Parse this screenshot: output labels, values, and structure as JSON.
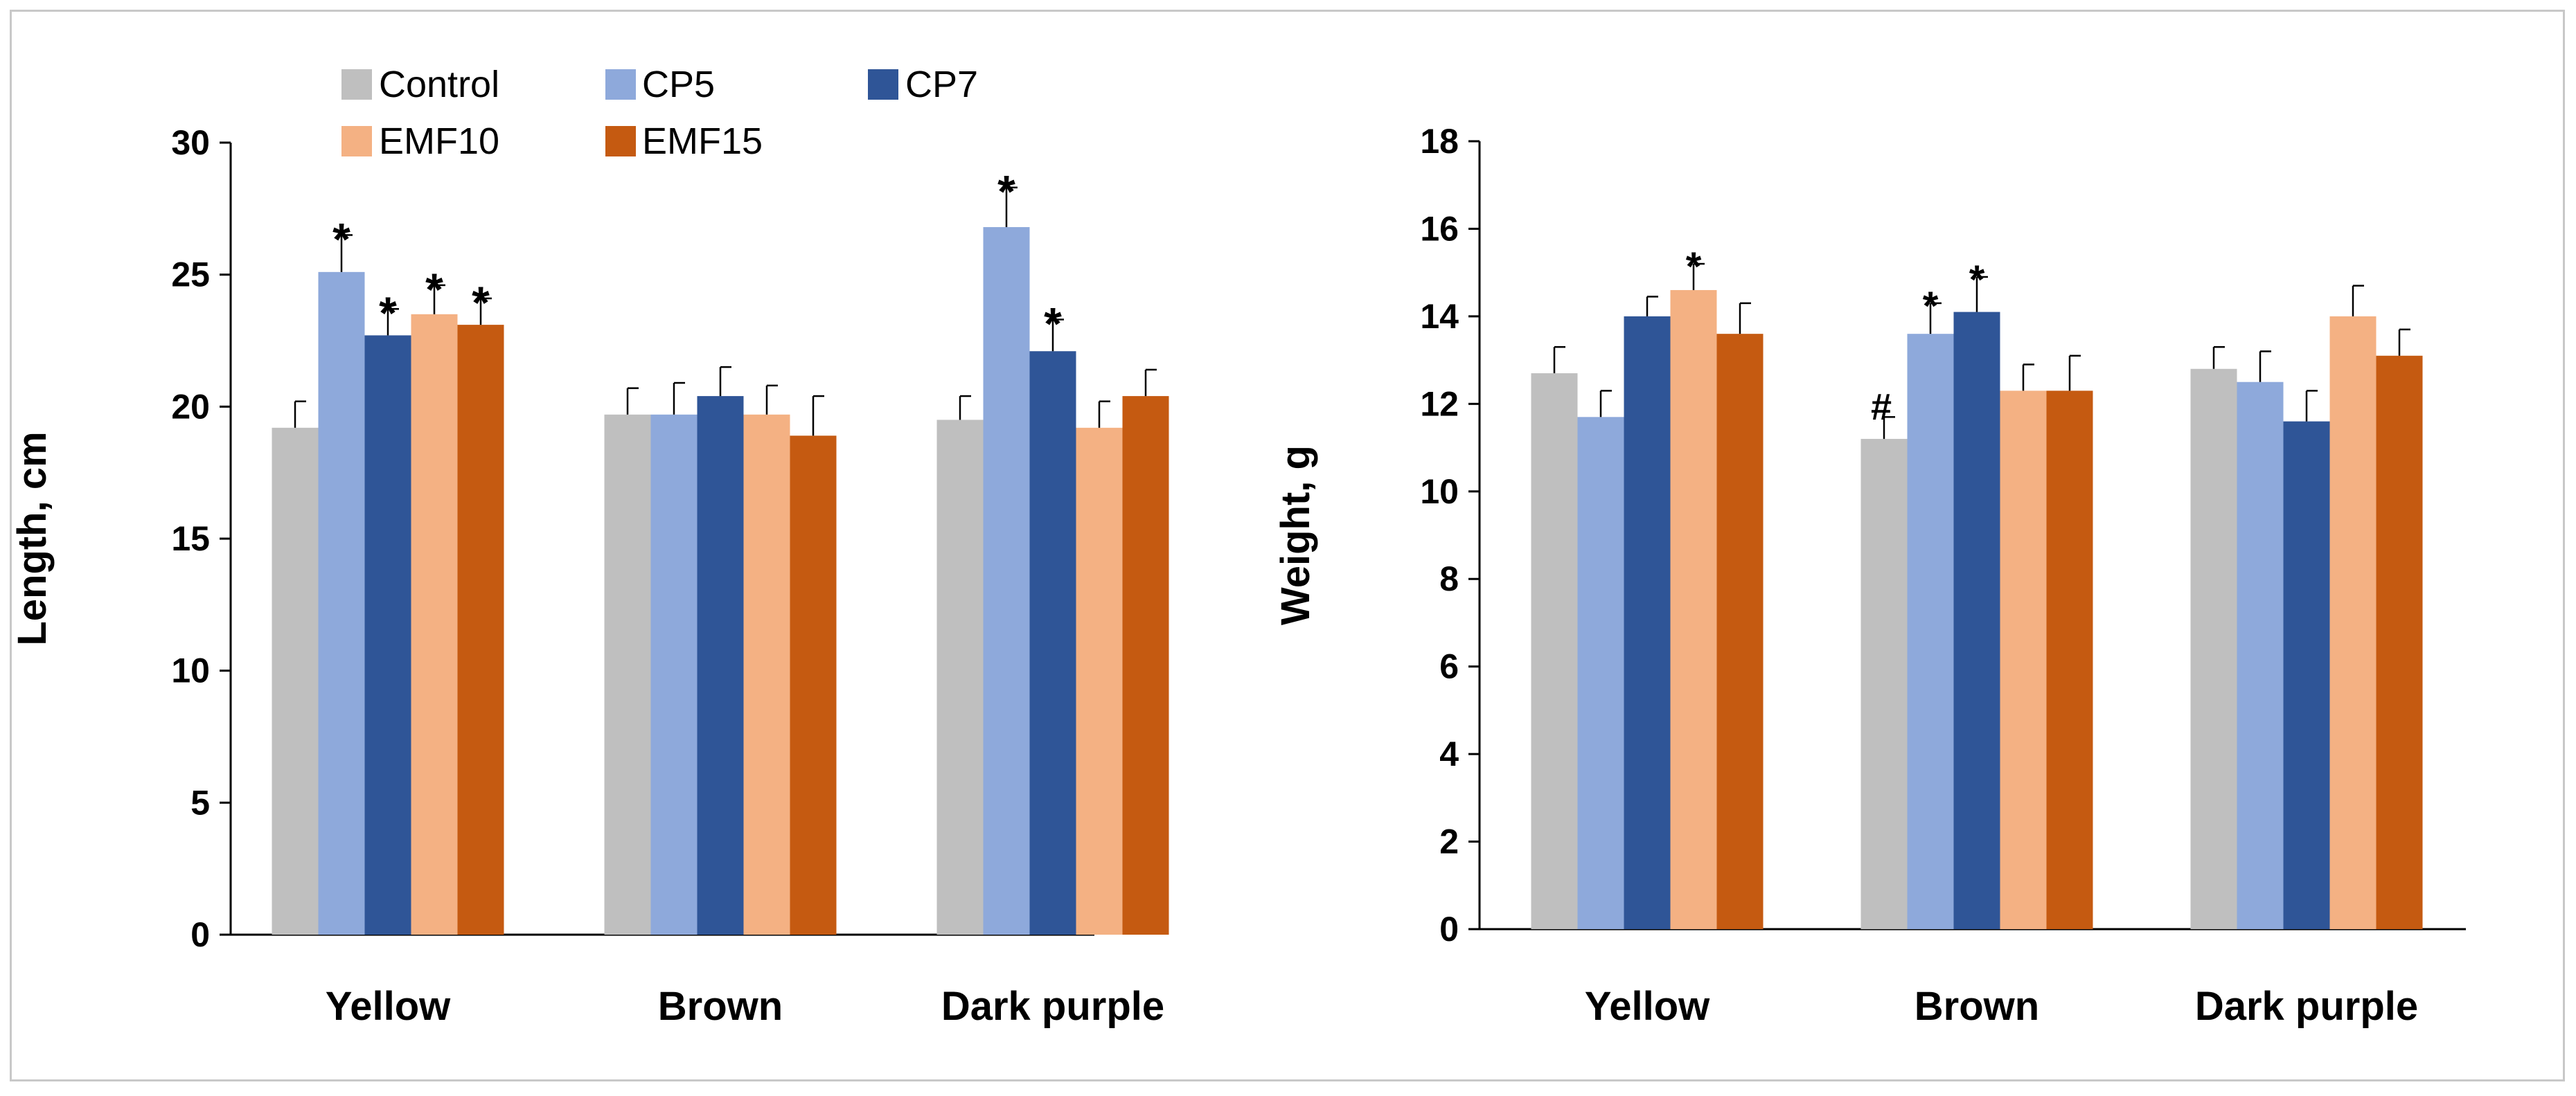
{
  "legend": {
    "entries": [
      {
        "name": "Control",
        "color": "#BFBFBF"
      },
      {
        "name": "CP5",
        "color": "#8EA9DB"
      },
      {
        "name": "CP7",
        "color": "#2F5597"
      },
      {
        "name": "EMF10",
        "color": "#F4B183"
      },
      {
        "name": "EMF15",
        "color": "#C55A11"
      }
    ]
  },
  "chart_data": [
    {
      "type": "bar",
      "title": "",
      "xlabel": "",
      "ylabel": "Length, cm",
      "ylim": [
        0,
        30
      ],
      "yticks": [
        0,
        5,
        10,
        15,
        20,
        25,
        30
      ],
      "categories": [
        "Yellow",
        "Brown",
        "Dark purple"
      ],
      "series": [
        {
          "name": "Control",
          "color": "#BFBFBF",
          "values": [
            19.2,
            19.7,
            19.5
          ],
          "errors": [
            1.0,
            1.0,
            0.9
          ],
          "marks": [
            "",
            "",
            ""
          ]
        },
        {
          "name": "CP5",
          "color": "#8EA9DB",
          "values": [
            25.1,
            19.7,
            26.8
          ],
          "errors": [
            1.4,
            1.2,
            1.5
          ],
          "marks": [
            "*",
            "",
            "*"
          ]
        },
        {
          "name": "CP7",
          "color": "#2F5597",
          "values": [
            22.7,
            20.4,
            22.1
          ],
          "errors": [
            1.0,
            1.1,
            1.2
          ],
          "marks": [
            "*",
            "",
            "*"
          ]
        },
        {
          "name": "EMF10",
          "color": "#F4B183",
          "values": [
            23.5,
            19.7,
            19.2
          ],
          "errors": [
            1.1,
            1.1,
            1.0
          ],
          "marks": [
            "*",
            "",
            ""
          ]
        },
        {
          "name": "EMF15",
          "color": "#C55A11",
          "values": [
            23.1,
            18.9,
            20.4
          ],
          "errors": [
            1.0,
            1.5,
            1.0
          ],
          "marks": [
            "*",
            "",
            ""
          ]
        }
      ]
    },
    {
      "type": "bar",
      "title": "",
      "xlabel": "",
      "ylabel": "Weight, g",
      "ylim": [
        0,
        18
      ],
      "yticks": [
        0,
        2,
        4,
        6,
        8,
        10,
        12,
        14,
        16,
        18
      ],
      "categories": [
        "Yellow",
        "Brown",
        "Dark purple"
      ],
      "series": [
        {
          "name": "Control",
          "color": "#BFBFBF",
          "values": [
            12.7,
            11.2,
            12.8
          ],
          "errors": [
            0.6,
            0.5,
            0.5
          ],
          "marks": [
            "",
            "#",
            ""
          ]
        },
        {
          "name": "CP5",
          "color": "#8EA9DB",
          "values": [
            11.7,
            13.6,
            12.5
          ],
          "errors": [
            0.6,
            0.7,
            0.7
          ],
          "marks": [
            "",
            "*",
            ""
          ]
        },
        {
          "name": "CP7",
          "color": "#2F5597",
          "values": [
            14.0,
            14.1,
            11.6
          ],
          "errors": [
            0.45,
            0.8,
            0.7
          ],
          "marks": [
            "",
            "*",
            ""
          ]
        },
        {
          "name": "EMF10",
          "color": "#F4B183",
          "values": [
            14.6,
            12.3,
            14.0
          ],
          "errors": [
            0.6,
            0.6,
            0.7
          ],
          "marks": [
            "*",
            "",
            ""
          ]
        },
        {
          "name": "EMF15",
          "color": "#C55A11",
          "values": [
            13.6,
            12.3,
            13.1
          ],
          "errors": [
            0.7,
            0.8,
            0.6
          ],
          "marks": [
            "",
            "",
            ""
          ]
        }
      ]
    }
  ]
}
